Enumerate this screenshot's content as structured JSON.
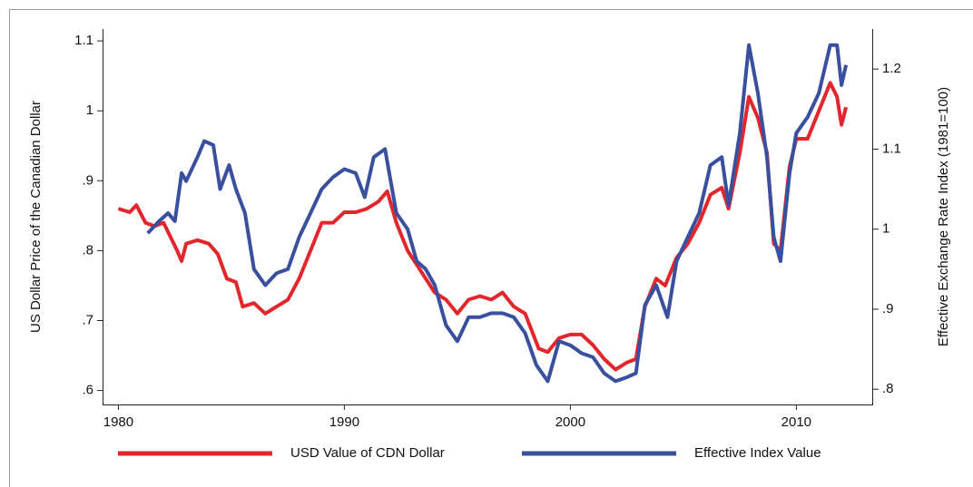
{
  "chart_data": {
    "type": "line",
    "ylabel": "US Dollar Price of the Canadian Dollar",
    "y2label": "Effective Exchange Rate Index (1981=100)",
    "xlim": [
      1979.3,
      2013.4
    ],
    "xticks": [
      1980,
      1990,
      2000,
      2010
    ],
    "ylim": [
      0.58,
      1.117
    ],
    "yticks": [
      {
        "value": 0.6,
        "label": ".6"
      },
      {
        "value": 0.7,
        "label": ".7"
      },
      {
        "value": 0.8,
        "label": ".8"
      },
      {
        "value": 0.9,
        "label": ".9"
      },
      1,
      1.1
    ],
    "y2lim": [
      0.781,
      1.25
    ],
    "y2ticks": [
      {
        "value": 0.8,
        "label": ".8"
      },
      {
        "value": 0.9,
        "label": ".9"
      },
      1,
      1.1,
      1.2
    ],
    "grid": false,
    "legend": "bottom",
    "series": [
      {
        "name": "USD Value of CDN Dollar",
        "color": "#e3262b",
        "axis": "y",
        "x": [
          1980.0,
          1980.5,
          1980.8,
          1981.2,
          1981.6,
          1982.0,
          1982.3,
          1982.6,
          1982.8,
          1983.0,
          1983.5,
          1984.0,
          1984.4,
          1984.8,
          1985.2,
          1985.5,
          1986.0,
          1986.5,
          1987.0,
          1987.5,
          1988.0,
          1988.5,
          1989.0,
          1989.5,
          1990.0,
          1990.5,
          1991.0,
          1991.5,
          1991.9,
          1992.3,
          1992.8,
          1993.2,
          1993.6,
          1994.0,
          1994.5,
          1995.0,
          1995.5,
          1996.0,
          1996.5,
          1997.0,
          1997.5,
          1998.0,
          1998.6,
          1999.0,
          1999.5,
          2000.0,
          2000.5,
          2001.0,
          2001.5,
          2002.0,
          2002.5,
          2002.9,
          2003.3,
          2003.8,
          2004.2,
          2004.7,
          2005.2,
          2005.7,
          2006.2,
          2006.7,
          2007.0,
          2007.5,
          2007.9,
          2008.3,
          2008.7,
          2009.0,
          2009.3,
          2009.7,
          2010.0,
          2010.5,
          2011.0,
          2011.5,
          2011.8,
          2012.0,
          2012.2
        ],
        "values": [
          0.86,
          0.855,
          0.865,
          0.84,
          0.835,
          0.84,
          0.82,
          0.8,
          0.785,
          0.81,
          0.815,
          0.81,
          0.795,
          0.76,
          0.755,
          0.72,
          0.725,
          0.71,
          0.72,
          0.73,
          0.76,
          0.8,
          0.84,
          0.84,
          0.855,
          0.855,
          0.86,
          0.87,
          0.885,
          0.84,
          0.8,
          0.78,
          0.76,
          0.74,
          0.73,
          0.71,
          0.73,
          0.735,
          0.73,
          0.74,
          0.72,
          0.71,
          0.66,
          0.655,
          0.675,
          0.68,
          0.68,
          0.665,
          0.645,
          0.63,
          0.64,
          0.645,
          0.72,
          0.76,
          0.75,
          0.79,
          0.81,
          0.84,
          0.88,
          0.89,
          0.86,
          0.94,
          1.02,
          0.99,
          0.94,
          0.81,
          0.8,
          0.92,
          0.96,
          0.96,
          1.0,
          1.04,
          1.02,
          0.98,
          1.005
        ]
      },
      {
        "name": "Effective Index Value",
        "color": "#3a4f9e",
        "axis": "y2",
        "x": [
          1981.3,
          1981.8,
          1982.2,
          1982.5,
          1982.8,
          1983.0,
          1983.5,
          1983.8,
          1984.2,
          1984.5,
          1984.9,
          1985.2,
          1985.6,
          1986.0,
          1986.5,
          1987.0,
          1987.5,
          1988.0,
          1988.5,
          1989.0,
          1989.5,
          1990.0,
          1990.5,
          1990.9,
          1991.3,
          1991.8,
          1992.3,
          1992.8,
          1993.2,
          1993.6,
          1994.0,
          1994.5,
          1995.0,
          1995.5,
          1996.0,
          1996.5,
          1997.0,
          1997.5,
          1998.0,
          1998.5,
          1999.0,
          1999.5,
          2000.0,
          2000.5,
          2001.0,
          2001.5,
          2002.0,
          2002.5,
          2002.9,
          2003.3,
          2003.8,
          2004.3,
          2004.7,
          2005.2,
          2005.7,
          2006.2,
          2006.7,
          2007.0,
          2007.5,
          2007.9,
          2008.3,
          2008.7,
          2009.0,
          2009.3,
          2009.7,
          2010.0,
          2010.5,
          2011.0,
          2011.5,
          2011.8,
          2012.0,
          2012.2
        ],
        "values": [
          0.995,
          1.01,
          1.02,
          1.01,
          1.07,
          1.06,
          1.09,
          1.11,
          1.105,
          1.05,
          1.08,
          1.05,
          1.02,
          0.95,
          0.93,
          0.945,
          0.95,
          0.99,
          1.02,
          1.05,
          1.065,
          1.075,
          1.07,
          1.04,
          1.09,
          1.1,
          1.02,
          1.0,
          0.96,
          0.95,
          0.93,
          0.88,
          0.86,
          0.89,
          0.89,
          0.895,
          0.895,
          0.89,
          0.87,
          0.83,
          0.81,
          0.86,
          0.855,
          0.845,
          0.84,
          0.82,
          0.81,
          0.815,
          0.82,
          0.905,
          0.93,
          0.89,
          0.96,
          0.99,
          1.02,
          1.08,
          1.09,
          1.03,
          1.12,
          1.23,
          1.17,
          1.09,
          0.99,
          0.96,
          1.07,
          1.12,
          1.14,
          1.17,
          1.23,
          1.23,
          1.18,
          1.205
        ]
      }
    ]
  }
}
